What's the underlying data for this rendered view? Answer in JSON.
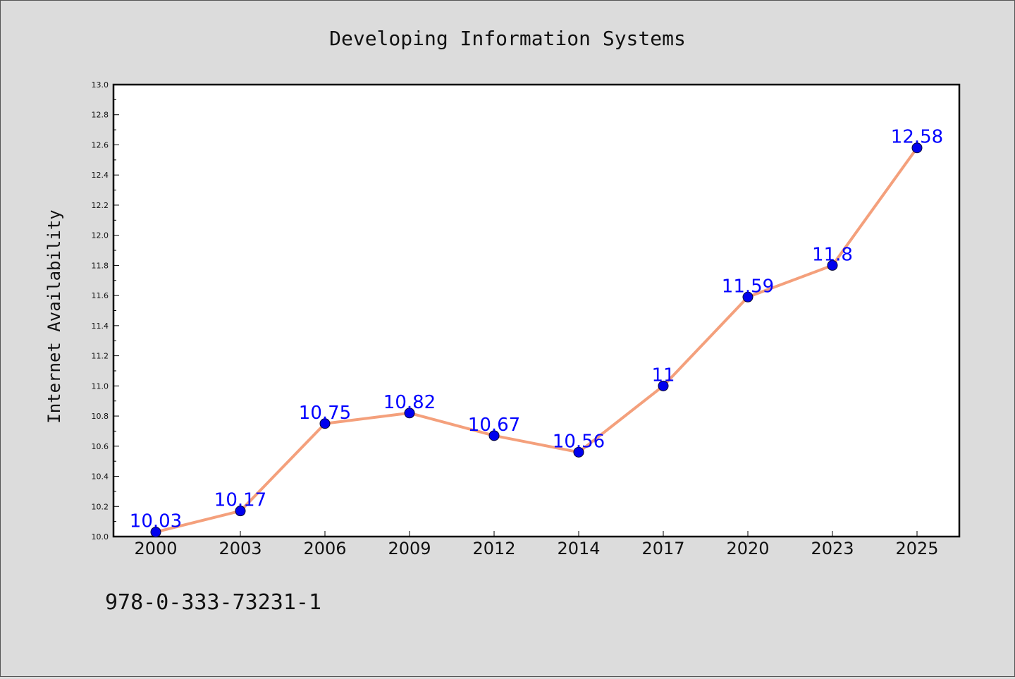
{
  "footnote": "978-0-333-73231-1",
  "chart_data": {
    "type": "line",
    "title": "Developing Information Systems",
    "xlabel": "",
    "ylabel": "Internet Availability",
    "categories": [
      "2000",
      "2003",
      "2006",
      "2009",
      "2012",
      "2014",
      "2017",
      "2020",
      "2023",
      "2025"
    ],
    "series": [
      {
        "values": [
          10.03,
          10.17,
          10.75,
          10.82,
          10.67,
          10.56,
          11,
          11.59,
          11.8,
          12.58
        ],
        "labels": [
          "10.03",
          "10.17",
          "10.75",
          "10.82",
          "10.67",
          "10.56",
          "11",
          "11.59",
          "11.8",
          "12.58"
        ]
      }
    ],
    "ylim": [
      10.0,
      13.0
    ],
    "yticks": [
      "10.0",
      "10.2",
      "10.4",
      "10.6",
      "10.8",
      "11.0",
      "11.2",
      "11.4",
      "11.6",
      "11.8",
      "12.0",
      "12.2",
      "12.4",
      "12.6",
      "12.8",
      "13.0"
    ],
    "grid": false,
    "legend": "none",
    "colors": {
      "line": "#f4a07c",
      "marker": "#0000ee",
      "data_label": "#0000ff",
      "plot_background": "#ffffff",
      "page_background": "#dcdcdc"
    }
  }
}
